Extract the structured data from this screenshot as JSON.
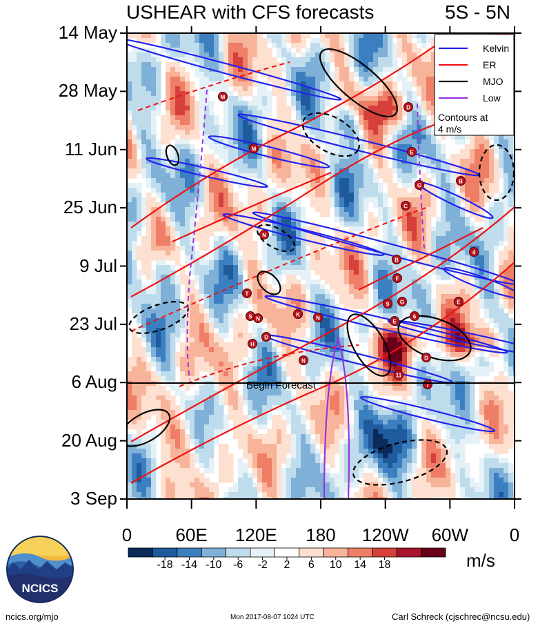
{
  "chart_data": {
    "type": "heatmap",
    "title": "USHEAR with CFS forecasts",
    "region": "5S - 5N",
    "ylabel_ticks": [
      "14 May",
      "28 May",
      "11 Jun",
      "25 Jun",
      "9 Jul",
      "23 Jul",
      "6 Aug",
      "20 Aug",
      "3 Sep"
    ],
    "xlabel_ticks": [
      "0",
      "60E",
      "120E",
      "180",
      "120W",
      "60W",
      "0"
    ],
    "x_range_deg_east": [
      0,
      360
    ],
    "time_range": [
      "2017-05-14",
      "2017-09-03"
    ],
    "forecast_marker": {
      "label": "Begin Forecast",
      "date": "6 Aug"
    },
    "legend": {
      "entries": [
        {
          "name": "Kelvin",
          "color": "#2222ee"
        },
        {
          "name": "ER",
          "color": "#ee1111"
        },
        {
          "name": "MJO",
          "color": "#000000"
        },
        {
          "name": "Low",
          "color": "#9933dd"
        }
      ],
      "note": "Contours at 4 m/s"
    },
    "colorbar": {
      "levels": [
        "-18",
        "-14",
        "-10",
        "-6",
        "-2",
        "2",
        "6",
        "10",
        "14",
        "18"
      ],
      "colors": [
        "#0a2a5a",
        "#1f5a9c",
        "#3b7fc0",
        "#7fb0d8",
        "#bfdcec",
        "#e4f1f7",
        "#ffffff",
        "#fde0d0",
        "#f8b49a",
        "#ee7e66",
        "#d6403a",
        "#a8152a",
        "#68001a"
      ],
      "units": "m/s"
    },
    "storm_labels": [
      "M",
      "M",
      "N",
      "T",
      "S",
      "D",
      "N",
      "H",
      "N",
      "K",
      "N",
      "E",
      "G",
      "C",
      "D",
      "B",
      "4",
      "E",
      "F",
      "9",
      "G",
      "6",
      "D",
      "E",
      "7",
      "11",
      "B"
    ]
  },
  "logo": {
    "text": "NCICS"
  },
  "footer": {
    "left": "ncics.org/mjo",
    "center": "Mon 2017-08-07 1024 UTC",
    "right": "Carl Schreck (cjschrec@ncsu.edu)"
  }
}
